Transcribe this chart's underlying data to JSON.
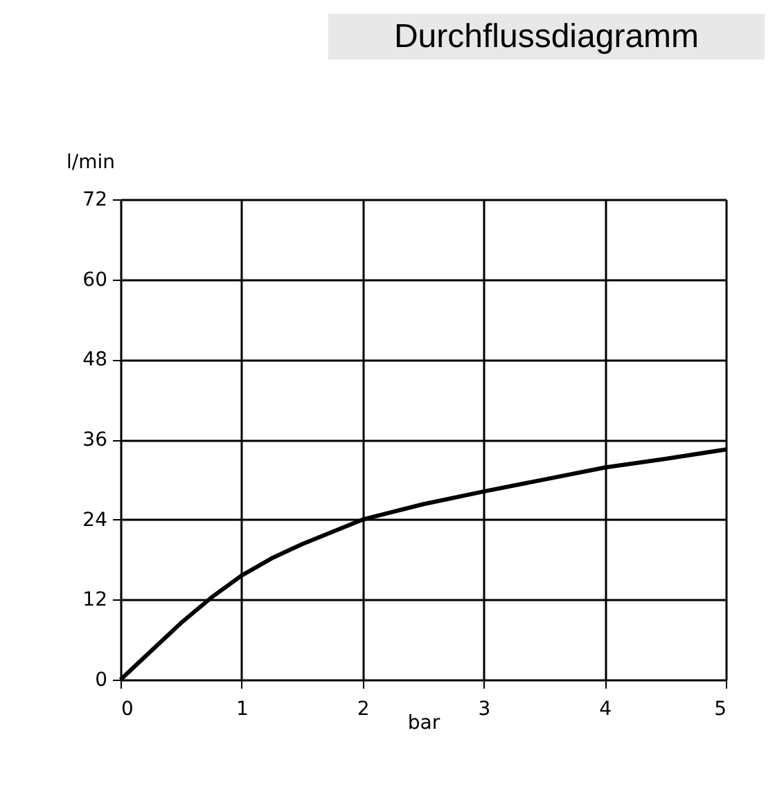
{
  "chart_data": {
    "type": "line",
    "title": "Durchflussdiagramm",
    "xlabel": "bar",
    "ylabel": "l/min",
    "x": [
      0,
      0.5,
      0.75,
      1,
      1.25,
      1.5,
      2,
      2.5,
      3,
      3.5,
      4,
      4.5,
      5
    ],
    "series": [
      {
        "color": "#000000",
        "values": [
          0,
          8.5,
          12.3,
          15.6,
          18.2,
          20.3,
          24,
          26.3,
          28.2,
          30,
          31.8,
          33.1,
          34.5
        ]
      }
    ],
    "xlim": [
      0,
      5
    ],
    "xticks": [
      0,
      1,
      2,
      3,
      4,
      5
    ],
    "ylim": [
      0,
      72
    ],
    "yticks": [
      0,
      12,
      24,
      36,
      48,
      60,
      72
    ],
    "grid": true,
    "legend": false,
    "marker": "none",
    "line_style": "solid"
  }
}
